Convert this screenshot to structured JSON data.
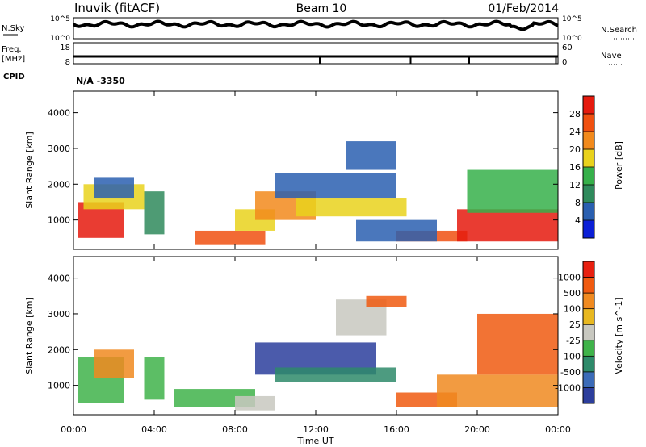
{
  "header": {
    "station": "Inuvik (fitACF)",
    "beam": "Beam 10",
    "date": "01/Feb/2014"
  },
  "noise_panel": {
    "left_label": "N.Sky",
    "right_label": "N.Search",
    "tick_top": "10^5",
    "tick_bottom": "10^0"
  },
  "freq_panel": {
    "left_label_1": "Freq.",
    "left_label_2": "[MHz]",
    "left_tick_top": "18",
    "left_tick_bottom": "8",
    "right_label": "Nave",
    "right_tick_top": "60",
    "right_tick_bottom": "0",
    "tick_times_hours": [
      12.2,
      16.7,
      19.6,
      23.9
    ]
  },
  "cpid": {
    "label": "CPID",
    "value": "N/A  -3350"
  },
  "colors": {
    "power_scale": [
      "#0b1fd6",
      "#2a5fb0",
      "#2f8a5c",
      "#36b04a",
      "#e9d21c",
      "#f28a1c",
      "#f05010",
      "#e51a0e"
    ],
    "velocity_scale": [
      "#2c3e9c",
      "#3b6bb8",
      "#2e8a6a",
      "#3fb34a",
      "#c8c8c0",
      "#e8b820",
      "#f08a20",
      "#f05a10",
      "#e82010"
    ]
  },
  "chart_data": [
    {
      "type": "heatmap",
      "name": "power",
      "ylabel": "Slant Range [km]",
      "yticks": [
        "1000",
        "2000",
        "3000",
        "4000"
      ],
      "yrange": [
        180,
        4600
      ],
      "colorbar_label": "Power [dB]",
      "colorbar_ticks": [
        "4",
        "8",
        "12",
        "16",
        "20",
        "24",
        "28"
      ],
      "colorbar_range": [
        0,
        32
      ]
    },
    {
      "type": "heatmap",
      "name": "velocity",
      "ylabel": "Slant Range [km]",
      "yticks": [
        "1000",
        "2000",
        "3000",
        "4000"
      ],
      "yrange": [
        180,
        4600
      ],
      "colorbar_label": "Velocity [m s^-1]",
      "colorbar_ticks": [
        "1000",
        "500",
        "100",
        "25",
        "-25",
        "-100",
        "-500",
        "-1000"
      ]
    }
  ],
  "time_axis": {
    "label": "Time UT",
    "ticks": [
      "00:00",
      "04:00",
      "08:00",
      "12:00",
      "16:00",
      "20:00",
      "00:00"
    ]
  }
}
